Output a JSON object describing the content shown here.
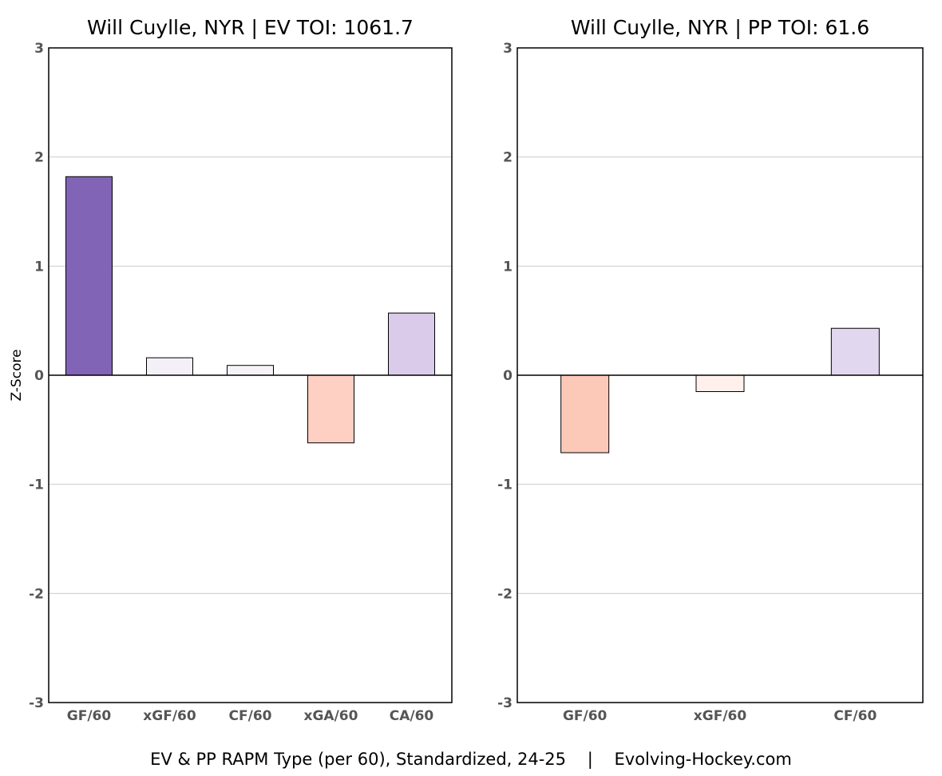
{
  "chart_data": [
    {
      "type": "bar",
      "title": "Will Cuylle, NYR  |  EV TOI: 1061.7",
      "ylabel": "Z-Score",
      "categories": [
        "GF/60",
        "xGF/60",
        "CF/60",
        "xGA/60",
        "CA/60"
      ],
      "values": [
        1.82,
        0.16,
        0.09,
        -0.62,
        0.57
      ],
      "colors": [
        "#8164b6",
        "#f3f0f8",
        "#f5f3f8",
        "#fdd0c3",
        "#d9cbe9"
      ],
      "ylim": [
        -3,
        3
      ],
      "yticks": [
        "3",
        "2",
        "1",
        "0",
        "-1",
        "-2",
        "-3"
      ],
      "grid": true
    },
    {
      "type": "bar",
      "title": "Will Cuylle, NYR  |  PP TOI: 61.6",
      "categories": [
        "GF/60",
        "xGF/60",
        "CF/60"
      ],
      "values": [
        -0.71,
        -0.15,
        0.43
      ],
      "colors": [
        "#fcc9b9",
        "#fff0eb",
        "#e1d7ee"
      ],
      "ylim": [
        -3,
        3
      ],
      "yticks": [
        "3",
        "2",
        "1",
        "0",
        "-1",
        "-2",
        "-3"
      ],
      "grid": true
    }
  ],
  "footer": "EV & PP RAPM Type (per 60), Standardized, 24-25    |    Evolving-Hockey.com"
}
